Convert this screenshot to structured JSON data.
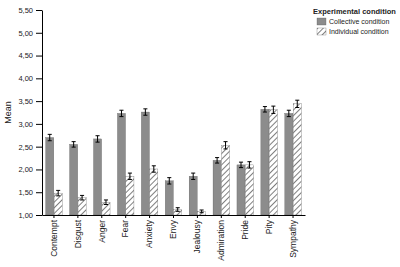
{
  "chart_data": {
    "type": "bar",
    "y_label": "Mean",
    "legend_title": "Experimental condition",
    "legend": "top-right",
    "grid": false,
    "categories": [
      "Contempt",
      "Disgust",
      "Anger",
      "Fear",
      "Anxiety",
      "Envy",
      "Jealousy",
      "Admiration",
      "Pride",
      "Pity",
      "Sympathy"
    ],
    "series": [
      {
        "name": "Collective condition",
        "color": "#8c8c8c",
        "values": [
          2.7,
          2.55,
          2.67,
          3.23,
          3.26,
          1.75,
          1.85,
          2.2,
          2.1,
          3.32,
          3.23
        ],
        "errors": [
          0.07,
          0.06,
          0.07,
          0.07,
          0.07,
          0.07,
          0.07,
          0.06,
          0.06,
          0.06,
          0.07
        ]
      },
      {
        "name": "Individual condition",
        "color": "#7f7f7f",
        "values": [
          1.48,
          1.38,
          1.28,
          1.85,
          2.01,
          1.12,
          1.08,
          2.53,
          2.1,
          3.31,
          3.44
        ],
        "errors": [
          0.06,
          0.05,
          0.05,
          0.07,
          0.07,
          0.04,
          0.03,
          0.08,
          0.07,
          0.08,
          0.08
        ]
      }
    ],
    "ylim": [
      1,
      5.5
    ],
    "yticks": [
      {
        "value": 1,
        "label": "1,00"
      },
      {
        "value": 1.5,
        "label": "1,50"
      },
      {
        "value": 2,
        "label": "2,00"
      },
      {
        "value": 2.5,
        "label": "2,50"
      },
      {
        "value": 3,
        "label": "3,00"
      },
      {
        "value": 3.5,
        "label": "3,50"
      },
      {
        "value": 4,
        "label": "4,00"
      },
      {
        "value": 4.5,
        "label": "4,50"
      },
      {
        "value": 5,
        "label": "5,00"
      },
      {
        "value": 5.5,
        "label": "5,50"
      }
    ]
  }
}
